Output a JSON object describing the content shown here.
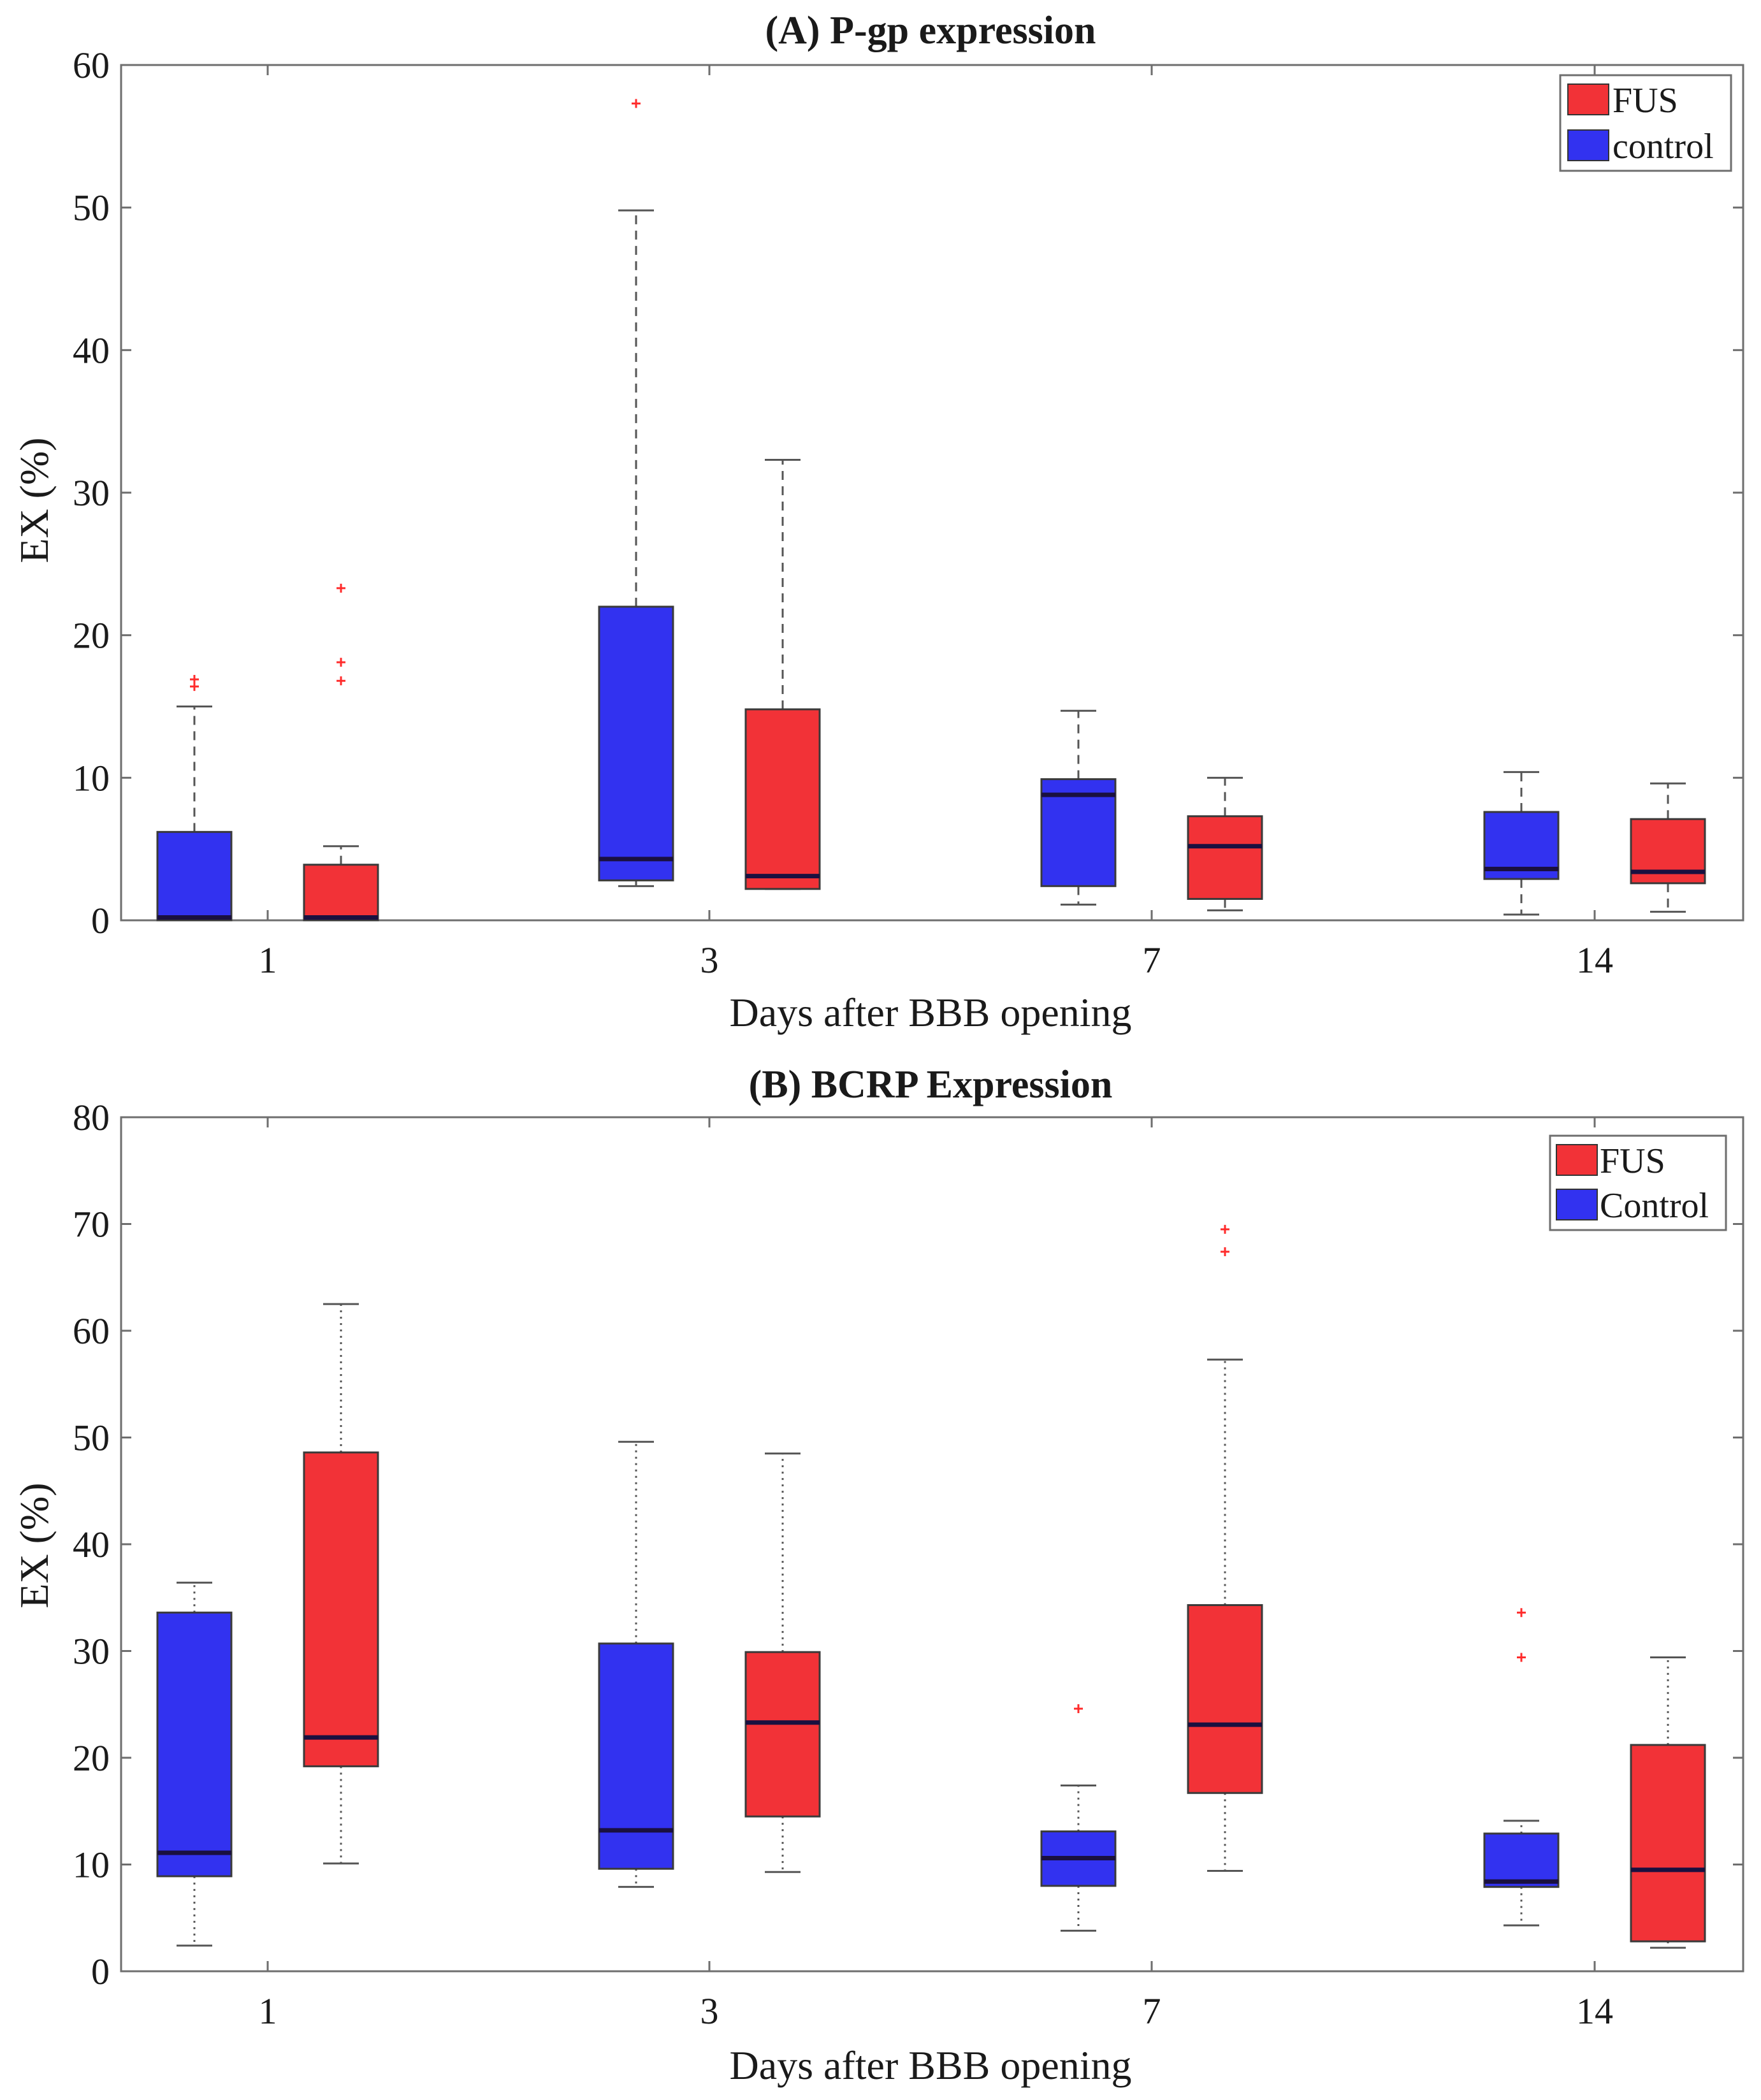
{
  "figure": {
    "panels": [
      {
        "title": "(A) P-gp expression"
      },
      {
        "title": "(B) BCRP Expression"
      }
    ]
  },
  "colors": {
    "fus": "#f23237",
    "control": "#3232f0",
    "median": "#1a1040",
    "outlier": "#ff2b2b",
    "axis": "#6e6e6e",
    "whisker": "#555555"
  },
  "chart_data": [
    {
      "type": "boxplot",
      "title": "(A) P-gp expression",
      "xlabel": "Days after BBB opening",
      "ylabel": "EX (%)",
      "categories": [
        "1",
        "3",
        "7",
        "14"
      ],
      "ylim": [
        0,
        60
      ],
      "yticks": [
        0,
        10,
        20,
        30,
        40,
        50,
        60
      ],
      "whisker_style": "dashed",
      "legend": {
        "placement": "top-right",
        "entries": [
          "FUS",
          "control"
        ]
      },
      "series": [
        {
          "name": "control",
          "color": "#3232f0",
          "boxes": [
            {
              "min": 0,
              "q1": 0,
              "median": 0.2,
              "q3": 6.2,
              "max": 15,
              "outliers": [
                16.4,
                16.9
              ]
            },
            {
              "min": 2.4,
              "q1": 2.8,
              "median": 4.3,
              "q3": 22,
              "max": 49.8,
              "outliers": [
                57.3
              ]
            },
            {
              "min": 1.1,
              "q1": 2.4,
              "median": 8.8,
              "q3": 9.9,
              "max": 14.7,
              "outliers": []
            },
            {
              "min": 0.4,
              "q1": 2.9,
              "median": 3.6,
              "q3": 7.6,
              "max": 10.4,
              "outliers": []
            }
          ]
        },
        {
          "name": "FUS",
          "color": "#f23237",
          "boxes": [
            {
              "min": 0,
              "q1": 0,
              "median": 0.2,
              "q3": 3.9,
              "max": 5.2,
              "outliers": [
                16.8,
                18.1,
                23.3
              ]
            },
            {
              "min": 2.2,
              "q1": 2.2,
              "median": 3.1,
              "q3": 14.8,
              "max": 32.3,
              "outliers": []
            },
            {
              "min": 0.7,
              "q1": 1.5,
              "median": 5.2,
              "q3": 7.3,
              "max": 10,
              "outliers": []
            },
            {
              "min": 0.6,
              "q1": 2.6,
              "median": 3.4,
              "q3": 7.1,
              "max": 9.6,
              "outliers": []
            }
          ]
        }
      ]
    },
    {
      "type": "boxplot",
      "title": "(B) BCRP Expression",
      "xlabel": "Days after BBB opening",
      "ylabel": "EX (%)",
      "categories": [
        "1",
        "3",
        "7",
        "14"
      ],
      "ylim": [
        0,
        80
      ],
      "yticks": [
        0,
        10,
        20,
        30,
        40,
        50,
        60,
        70,
        80
      ],
      "whisker_style": "dotted",
      "legend": {
        "placement": "top-right",
        "entries": [
          "FUS",
          "Control"
        ]
      },
      "series": [
        {
          "name": "Control",
          "color": "#3232f0",
          "boxes": [
            {
              "min": 2.4,
              "q1": 8.9,
              "median": 11.1,
              "q3": 33.6,
              "max": 36.4,
              "outliers": []
            },
            {
              "min": 7.9,
              "q1": 9.6,
              "median": 13.2,
              "q3": 30.7,
              "max": 49.6,
              "outliers": []
            },
            {
              "min": 3.8,
              "q1": 8,
              "median": 10.6,
              "q3": 13.1,
              "max": 17.4,
              "outliers": [
                24.6
              ]
            },
            {
              "min": 4.3,
              "q1": 7.9,
              "median": 8.4,
              "q3": 12.9,
              "max": 14.1,
              "outliers": [
                29.4,
                33.6
              ]
            }
          ]
        },
        {
          "name": "FUS",
          "color": "#f23237",
          "boxes": [
            {
              "min": 10.1,
              "q1": 19.2,
              "median": 21.9,
              "q3": 48.6,
              "max": 62.5,
              "outliers": []
            },
            {
              "min": 9.3,
              "q1": 14.5,
              "median": 23.3,
              "q3": 29.9,
              "max": 48.5,
              "outliers": []
            },
            {
              "min": 9.4,
              "q1": 16.7,
              "median": 23.1,
              "q3": 34.3,
              "max": 57.3,
              "outliers": [
                67.4,
                69.5
              ]
            },
            {
              "min": 2.2,
              "q1": 2.8,
              "median": 9.5,
              "q3": 21.2,
              "max": 29.4,
              "outliers": []
            }
          ]
        }
      ]
    }
  ]
}
